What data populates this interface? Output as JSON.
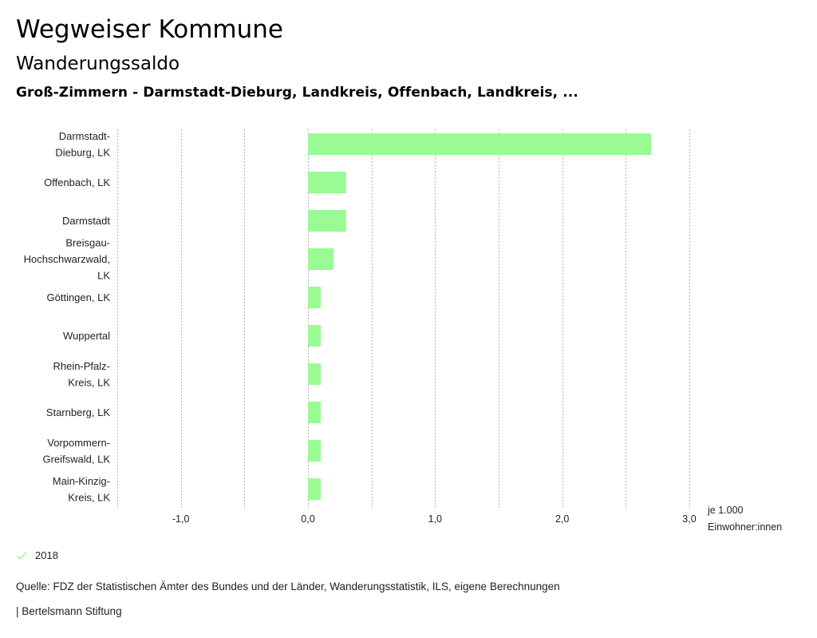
{
  "header": {
    "title": "Wegweiser Kommune",
    "subtitle": "Wanderungssaldo",
    "region": "Groß-Zimmern - Darmstadt-Dieburg, Landkreis, Offenbach, Landkreis, ..."
  },
  "colors": {
    "bar": "#9afa94",
    "grid": "#b5b5b5",
    "legend_check": "#9afa94"
  },
  "chart_data": {
    "type": "bar",
    "orientation": "horizontal",
    "title": "Wanderungssaldo",
    "categories": [
      [
        "Darmstadt-",
        "Dieburg, LK"
      ],
      [
        "Offenbach, LK"
      ],
      [
        "Darmstadt"
      ],
      [
        "Breisgau-",
        "Hochschwarzwald,",
        "LK"
      ],
      [
        "Göttingen, LK"
      ],
      [
        "Wuppertal"
      ],
      [
        "Rhein-Pfalz-",
        "Kreis, LK"
      ],
      [
        "Starnberg, LK"
      ],
      [
        "Vorpommern-",
        "Greifswald, LK"
      ],
      [
        "Main-Kinzig-",
        "Kreis, LK"
      ]
    ],
    "series": [
      {
        "name": "2018",
        "values": [
          2.7,
          0.3,
          0.3,
          0.2,
          0.1,
          0.1,
          0.1,
          0.1,
          0.1,
          0.1
        ]
      }
    ],
    "xlim": [
      -1.5,
      3.0
    ],
    "xticks": [
      -1.0,
      0.0,
      1.0,
      2.0,
      3.0
    ],
    "xtick_labels": [
      "-1,0",
      "0,0",
      "1,0",
      "2,0",
      "3,0"
    ],
    "gridlines_at": [
      -1.5,
      -1.0,
      -0.5,
      0.0,
      0.5,
      1.0,
      1.5,
      2.0,
      2.5,
      3.0
    ],
    "grid": true,
    "xlabel": [
      "je 1.000",
      "Einwohner:innen"
    ],
    "ylabel": "",
    "legend": {
      "position": "bottom-left",
      "entries": [
        "2018"
      ]
    }
  },
  "footer": {
    "source": "Quelle: FDZ der Statistischen Ämter des Bundes und der Länder, Wanderungsstatistik, ILS, eigene Berechnungen",
    "credit": "| Bertelsmann Stiftung"
  }
}
